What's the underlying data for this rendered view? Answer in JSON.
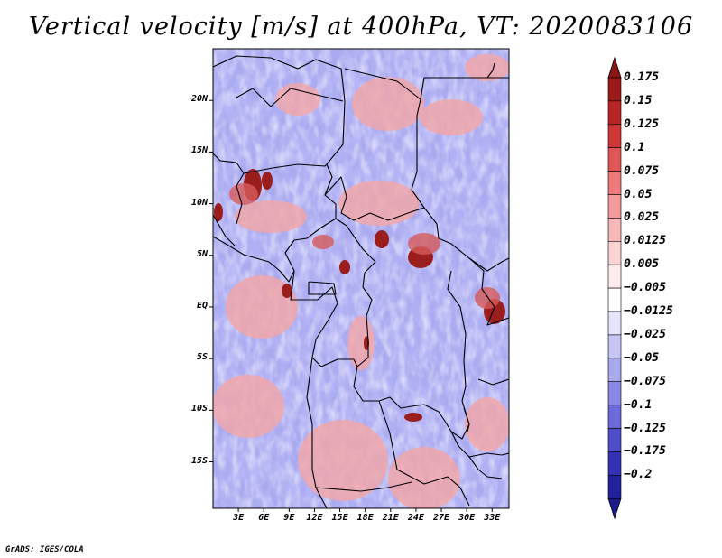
{
  "title": "Vertical velocity [m/s] at 400hPa, VT: 2020083106",
  "credit": "GrADS: IGES/COLA",
  "map": {
    "lat_range": [
      -19.5,
      25
    ],
    "lon_range": [
      0,
      35
    ],
    "lat_ticks": [
      {
        "value": 20,
        "label": "20N"
      },
      {
        "value": 15,
        "label": "15N"
      },
      {
        "value": 10,
        "label": "10N"
      },
      {
        "value": 5,
        "label": "5N"
      },
      {
        "value": 0,
        "label": "EQ"
      },
      {
        "value": -5,
        "label": "5S"
      },
      {
        "value": -10,
        "label": "10S"
      },
      {
        "value": -15,
        "label": "15S"
      }
    ],
    "lon_ticks": [
      {
        "value": 3,
        "label": "3E"
      },
      {
        "value": 6,
        "label": "6E"
      },
      {
        "value": 9,
        "label": "9E"
      },
      {
        "value": 12,
        "label": "12E"
      },
      {
        "value": 15,
        "label": "15E"
      },
      {
        "value": 18,
        "label": "18E"
      },
      {
        "value": 21,
        "label": "21E"
      },
      {
        "value": 24,
        "label": "24E"
      },
      {
        "value": 27,
        "label": "27E"
      },
      {
        "value": 30,
        "label": "30E"
      },
      {
        "value": 33,
        "label": "33E"
      }
    ]
  },
  "colorbar": {
    "levels": [
      {
        "label": "0.175",
        "color": "#9b1b1b"
      },
      {
        "label": "0.15",
        "color": "#b82424"
      },
      {
        "label": "0.125",
        "color": "#cf3636"
      },
      {
        "label": "0.1",
        "color": "#e05656"
      },
      {
        "label": "0.075",
        "color": "#ec7a7a"
      },
      {
        "label": "0.05",
        "color": "#f39999"
      },
      {
        "label": "0.025",
        "color": "#f8b8b8"
      },
      {
        "label": "0.0125",
        "color": "#fbd3d3"
      },
      {
        "label": "0.005",
        "color": "#fdeaea"
      },
      {
        "label": "−0.005",
        "color": "#ffffff"
      },
      {
        "label": "−0.0125",
        "color": "#e4e4fb"
      },
      {
        "label": "−0.025",
        "color": "#c6c6f5"
      },
      {
        "label": "−0.05",
        "color": "#a8a8ee"
      },
      {
        "label": "−0.075",
        "color": "#8888e4"
      },
      {
        "label": "−0.1",
        "color": "#6a6ad8"
      },
      {
        "label": "−0.125",
        "color": "#4e4ec8"
      },
      {
        "label": "−0.175",
        "color": "#3333b4"
      },
      {
        "label": "−0.2",
        "color": "#22229c"
      }
    ],
    "over_color": "#8b1515",
    "under_color": "#1a1a8a"
  }
}
